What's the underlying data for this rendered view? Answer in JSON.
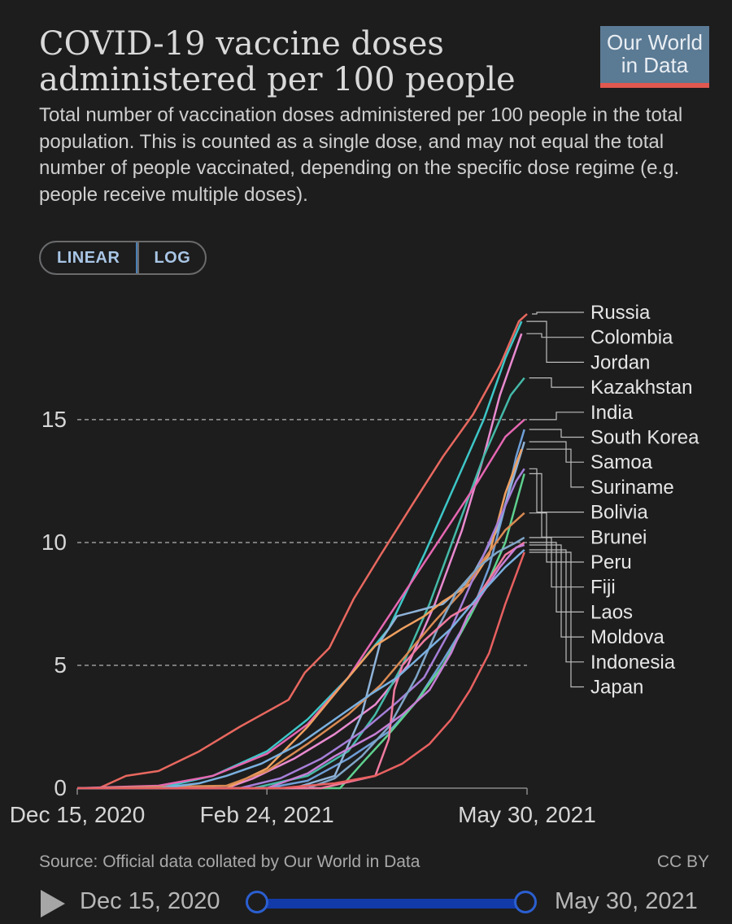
{
  "title_lines": [
    "COVID-19 vaccine doses",
    "administered per 100 people"
  ],
  "logo_lines": [
    "Our World",
    "in Data"
  ],
  "subtitle": "Total number of vaccination doses administered per 100 people in the total population. This is counted as a single dose, and may not equal the total number of people vaccinated, depending on the specific dose regime (e.g. people receive multiple doses).",
  "scale_toggle": {
    "linear": "LINEAR",
    "log": "LOG",
    "selected": "LINEAR"
  },
  "source": "Source: Official data collated by Our World in Data",
  "license": "CC BY",
  "timeline": {
    "start": "Dec 15, 2020",
    "end": "May 30, 2021"
  },
  "chart_data": {
    "type": "line",
    "title": "COVID-19 vaccine doses administered per 100 people",
    "xlabel": "",
    "ylabel": "",
    "x_ticks": [
      "Dec 15, 2020",
      "Feb 24, 2021",
      "May 30, 2021"
    ],
    "x_range_days": [
      0,
      166
    ],
    "y_ticks": [
      0,
      5,
      10,
      15
    ],
    "ylim": [
      0,
      19.5
    ],
    "grid": "horizontal dashed",
    "legend": "right, end-of-line labels",
    "series": [
      {
        "name": "Russia",
        "color": "#e8685f",
        "points": [
          [
            0,
            0
          ],
          [
            8,
            0
          ],
          [
            18,
            0.5
          ],
          [
            30,
            0.7
          ],
          [
            45,
            1.5
          ],
          [
            60,
            2.5
          ],
          [
            78,
            3.6
          ],
          [
            84,
            4.7
          ],
          [
            93,
            5.7
          ],
          [
            102,
            7.7
          ],
          [
            112,
            9.5
          ],
          [
            124,
            11.6
          ],
          [
            135,
            13.5
          ],
          [
            146,
            15.2
          ],
          [
            156,
            17.2
          ],
          [
            163,
            19.0
          ],
          [
            166,
            19.3
          ]
        ]
      },
      {
        "name": "Colombia",
        "color": "#e98ad0",
        "points": [
          [
            0,
            0
          ],
          [
            55,
            0
          ],
          [
            65,
            0.4
          ],
          [
            80,
            1.2
          ],
          [
            95,
            2.2
          ],
          [
            110,
            3.4
          ],
          [
            122,
            5.0
          ],
          [
            132,
            7.5
          ],
          [
            142,
            10.5
          ],
          [
            150,
            13.5
          ],
          [
            156,
            16.0
          ],
          [
            163,
            18.2
          ],
          [
            164,
            18.5
          ]
        ]
      },
      {
        "name": "Jordan",
        "color": "#3ec6c7",
        "points": [
          [
            0,
            0
          ],
          [
            30,
            0
          ],
          [
            50,
            0.5
          ],
          [
            70,
            1.5
          ],
          [
            85,
            2.8
          ],
          [
            100,
            4.5
          ],
          [
            115,
            6.5
          ],
          [
            128,
            9.5
          ],
          [
            140,
            12.5
          ],
          [
            150,
            15.0
          ],
          [
            158,
            17.5
          ],
          [
            164,
            19.0
          ]
        ]
      },
      {
        "name": "Kazakhstan",
        "color": "#45b9a8",
        "points": [
          [
            0,
            0
          ],
          [
            65,
            0
          ],
          [
            85,
            0.5
          ],
          [
            100,
            1.5
          ],
          [
            110,
            3.0
          ],
          [
            120,
            5.0
          ],
          [
            130,
            7.5
          ],
          [
            140,
            10.5
          ],
          [
            150,
            13.5
          ],
          [
            160,
            16.0
          ],
          [
            165,
            16.7
          ]
        ]
      },
      {
        "name": "India",
        "color": "#e567b2",
        "points": [
          [
            0,
            0
          ],
          [
            30,
            0.1
          ],
          [
            50,
            0.5
          ],
          [
            70,
            1.4
          ],
          [
            85,
            2.6
          ],
          [
            100,
            4.5
          ],
          [
            112,
            6.5
          ],
          [
            124,
            8.5
          ],
          [
            136,
            10.5
          ],
          [
            148,
            12.5
          ],
          [
            158,
            14.3
          ],
          [
            165,
            15.0
          ]
        ]
      },
      {
        "name": "South Korea",
        "color": "#6f9fd8",
        "points": [
          [
            0,
            0
          ],
          [
            70,
            0
          ],
          [
            85,
            0.3
          ],
          [
            100,
            1.2
          ],
          [
            115,
            2.3
          ],
          [
            125,
            3.5
          ],
          [
            135,
            5.2
          ],
          [
            145,
            7.0
          ],
          [
            152,
            9.0
          ],
          [
            158,
            11.5
          ],
          [
            162,
            13.5
          ],
          [
            165,
            14.6
          ]
        ]
      },
      {
        "name": "Samoa",
        "color": "#8fb3d9",
        "points": [
          [
            0,
            0
          ],
          [
            80,
            0
          ],
          [
            95,
            0.5
          ],
          [
            105,
            3.0
          ],
          [
            112,
            6.0
          ],
          [
            118,
            7.0
          ],
          [
            125,
            7.2
          ],
          [
            135,
            7.5
          ],
          [
            145,
            8.5
          ],
          [
            155,
            10.5
          ],
          [
            162,
            13.0
          ],
          [
            165,
            14.1
          ]
        ]
      },
      {
        "name": "Suriname",
        "color": "#f0a060",
        "points": [
          [
            0,
            0
          ],
          [
            55,
            0
          ],
          [
            70,
            0.8
          ],
          [
            85,
            2.5
          ],
          [
            100,
            4.5
          ],
          [
            110,
            5.8
          ],
          [
            120,
            6.5
          ],
          [
            128,
            7.0
          ],
          [
            135,
            7.6
          ],
          [
            145,
            8.3
          ],
          [
            152,
            9.5
          ],
          [
            158,
            12.0
          ],
          [
            164,
            13.8
          ]
        ]
      },
      {
        "name": "Bolivia",
        "color": "#a67fd9",
        "points": [
          [
            0,
            0
          ],
          [
            60,
            0
          ],
          [
            75,
            0.4
          ],
          [
            90,
            1.2
          ],
          [
            105,
            2.3
          ],
          [
            118,
            3.5
          ],
          [
            128,
            4.5
          ],
          [
            138,
            6.5
          ],
          [
            148,
            9.0
          ],
          [
            156,
            11.0
          ],
          [
            162,
            12.5
          ],
          [
            165,
            13.0
          ]
        ]
      },
      {
        "name": "Brunei",
        "color": "#5ed08e",
        "points": [
          [
            0,
            0
          ],
          [
            97,
            0
          ],
          [
            105,
            1.0
          ],
          [
            115,
            2.2
          ],
          [
            125,
            3.5
          ],
          [
            135,
            5.0
          ],
          [
            145,
            7.0
          ],
          [
            152,
            8.5
          ],
          [
            158,
            10.0
          ],
          [
            165,
            12.8
          ]
        ]
      },
      {
        "name": "Peru",
        "color": "#d98a52",
        "points": [
          [
            0,
            0
          ],
          [
            55,
            0.1
          ],
          [
            70,
            0.7
          ],
          [
            85,
            1.8
          ],
          [
            100,
            3.0
          ],
          [
            112,
            4.2
          ],
          [
            122,
            5.5
          ],
          [
            132,
            6.8
          ],
          [
            142,
            8.0
          ],
          [
            150,
            9.3
          ],
          [
            158,
            10.5
          ],
          [
            165,
            11.2
          ]
        ]
      },
      {
        "name": "Fiji",
        "color": "#7fa6c8",
        "points": [
          [
            0,
            0
          ],
          [
            85,
            0
          ],
          [
            95,
            0.4
          ],
          [
            105,
            1.3
          ],
          [
            115,
            2.5
          ],
          [
            125,
            4.5
          ],
          [
            133,
            6.5
          ],
          [
            140,
            8.0
          ],
          [
            148,
            9.0
          ],
          [
            155,
            9.6
          ],
          [
            162,
            10.0
          ],
          [
            165,
            10.2
          ]
        ]
      },
      {
        "name": "Laos",
        "color": "#f07ba0",
        "points": [
          [
            0,
            0
          ],
          [
            90,
            0
          ],
          [
            110,
            0.5
          ],
          [
            115,
            2.0
          ],
          [
            117,
            4.0
          ],
          [
            120,
            5.0
          ],
          [
            128,
            6.0
          ],
          [
            138,
            7.0
          ],
          [
            146,
            7.5
          ],
          [
            152,
            8.5
          ],
          [
            158,
            9.5
          ],
          [
            165,
            10.0
          ]
        ]
      },
      {
        "name": "Moldova",
        "color": "#c77fd6",
        "points": [
          [
            0,
            0
          ],
          [
            70,
            0
          ],
          [
            85,
            0.6
          ],
          [
            95,
            1.3
          ],
          [
            110,
            2.2
          ],
          [
            120,
            3.0
          ],
          [
            130,
            4.0
          ],
          [
            138,
            5.5
          ],
          [
            144,
            7.0
          ],
          [
            150,
            8.0
          ],
          [
            156,
            9.0
          ],
          [
            162,
            9.8
          ],
          [
            165,
            9.9
          ]
        ]
      },
      {
        "name": "Indonesia",
        "color": "#7ab0e0",
        "points": [
          [
            0,
            0
          ],
          [
            30,
            0
          ],
          [
            45,
            0.2
          ],
          [
            55,
            0.5
          ],
          [
            68,
            1.0
          ],
          [
            82,
            1.8
          ],
          [
            95,
            2.8
          ],
          [
            108,
            3.8
          ],
          [
            118,
            4.5
          ],
          [
            128,
            5.5
          ],
          [
            138,
            6.5
          ],
          [
            148,
            7.8
          ],
          [
            158,
            9.0
          ],
          [
            165,
            9.7
          ]
        ]
      },
      {
        "name": "Japan",
        "color": "#e86060",
        "points": [
          [
            0,
            0
          ],
          [
            60,
            0
          ],
          [
            75,
            0
          ],
          [
            95,
            0.2
          ],
          [
            110,
            0.5
          ],
          [
            120,
            1.0
          ],
          [
            130,
            1.8
          ],
          [
            138,
            2.8
          ],
          [
            145,
            4.0
          ],
          [
            152,
            5.5
          ],
          [
            158,
            7.5
          ],
          [
            163,
            9.0
          ],
          [
            165,
            9.6
          ]
        ]
      }
    ]
  }
}
